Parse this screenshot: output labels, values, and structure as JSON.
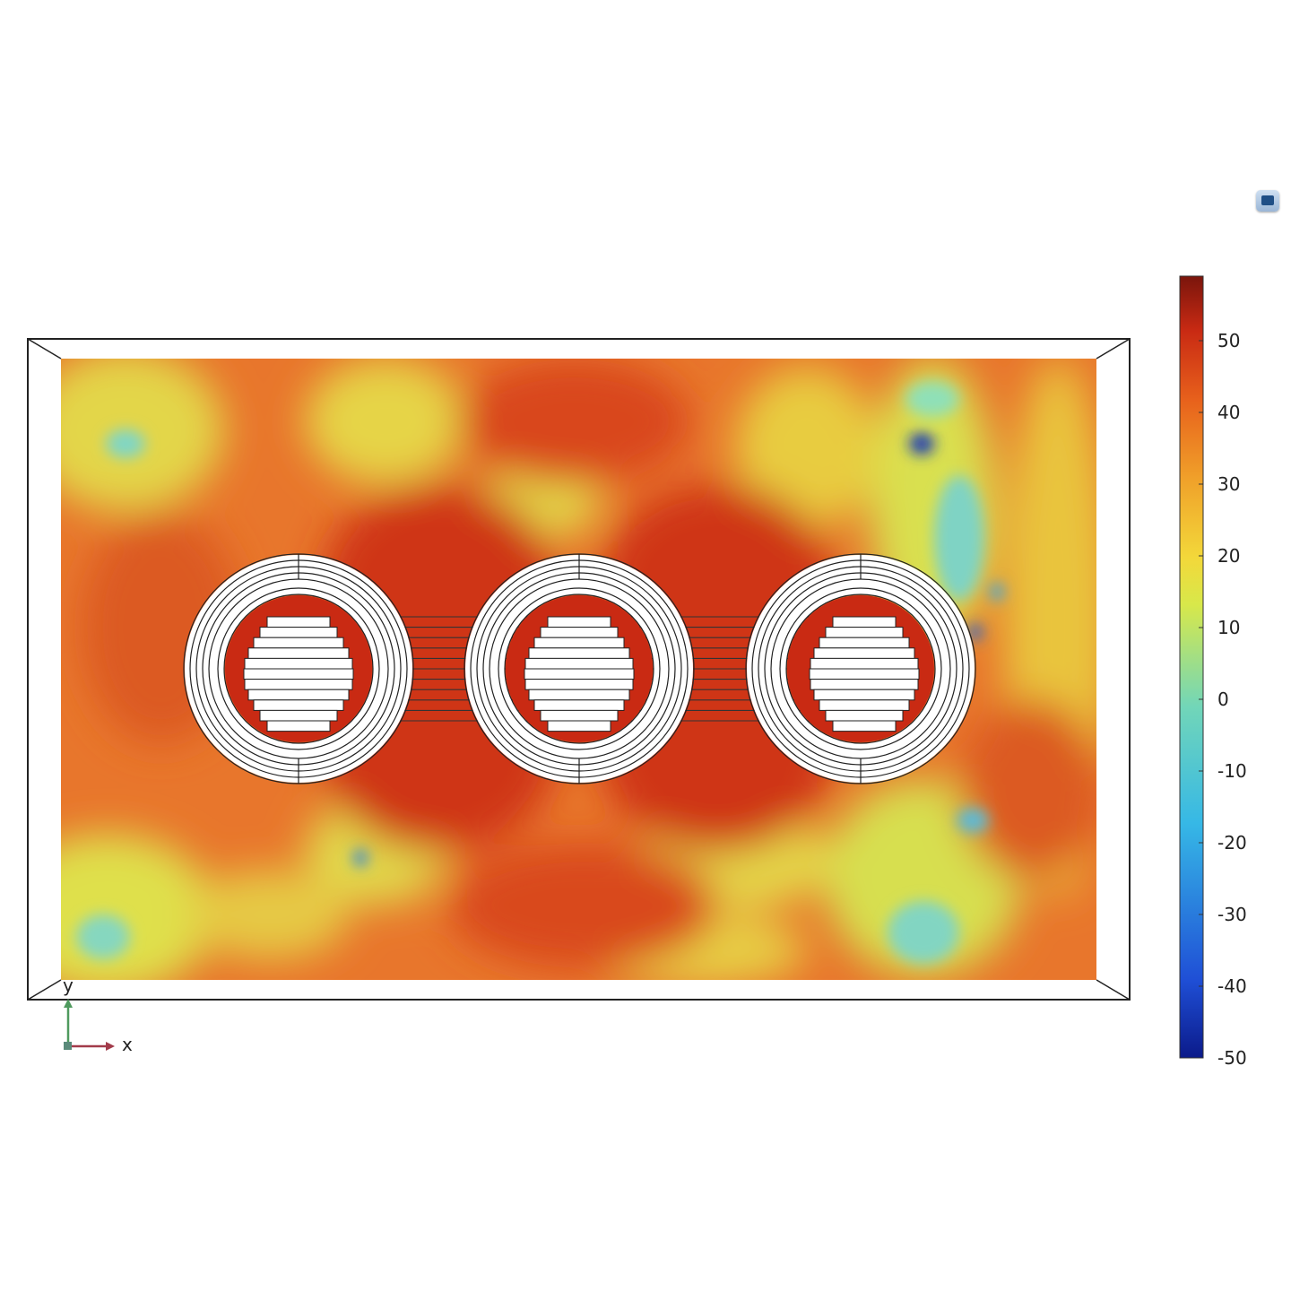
{
  "colorbar": {
    "tick_labels": [
      "50",
      "40",
      "30",
      "20",
      "10",
      "0",
      "-10",
      "-20",
      "-30",
      "-40",
      "-50"
    ],
    "tick_values": [
      50,
      40,
      30,
      20,
      10,
      0,
      -10,
      -20,
      -30,
      -40,
      -50
    ],
    "range": [
      -50,
      59
    ],
    "colormap": [
      "#0b1a8a",
      "#1f4fd6",
      "#36b8e6",
      "#72d6b8",
      "#d8e84a",
      "#f3d83a",
      "#f0a12a",
      "#e8621c",
      "#c92a13",
      "#7a150c"
    ]
  },
  "axes_triad": {
    "x_label": "x",
    "y_label": "y",
    "x_color": "#a23b4a",
    "y_color": "#4f9a5e"
  },
  "colors": {
    "field_mid": "#e8682a",
    "field_hot": "#c92a13",
    "field_warm": "#f0a12a",
    "field_cool": "#e3df4a",
    "field_cold": "#7fd3c4",
    "field_coldest": "#1539b8"
  },
  "toolbar": {
    "view_button_icon": "view-cube-icon"
  }
}
